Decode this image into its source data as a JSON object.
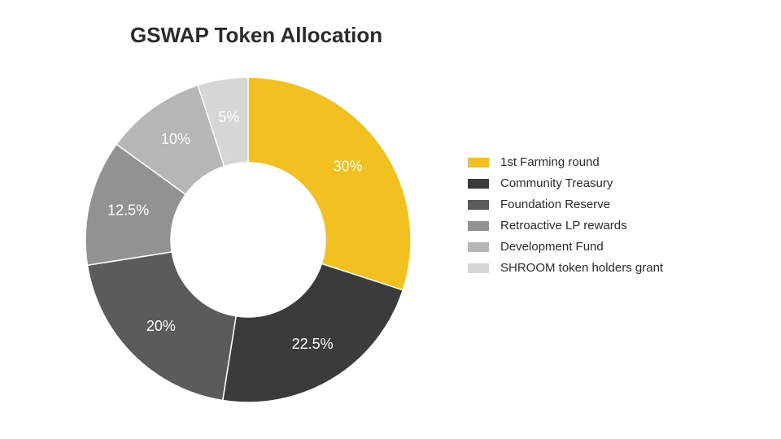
{
  "title": "GSWAP Token Allocation",
  "title_fontsize": 26,
  "background_color": "#ffffff",
  "chart": {
    "type": "donut",
    "outer_radius": 200,
    "inner_radius": 95,
    "start_angle_deg": 0,
    "label_fontsize": 18,
    "label_color": "#ffffff",
    "slices": [
      {
        "label": "1st Farming round",
        "value": 30,
        "color": "#f2c11f",
        "display": "30%"
      },
      {
        "label": "Community Treasury",
        "value": 22.5,
        "color": "#3b3b3b",
        "display": "22.5%"
      },
      {
        "label": "Foundation Reserve",
        "value": 20,
        "color": "#5c5b5b",
        "display": "20%"
      },
      {
        "label": "Retroactive LP rewards",
        "value": 12.5,
        "color": "#939292",
        "display": "12.5%"
      },
      {
        "label": "Development Fund",
        "value": 10,
        "color": "#b6b6b6",
        "display": "10%"
      },
      {
        "label": "SHROOM token holders grant",
        "value": 5,
        "color": "#d6d6d5",
        "display": "5%"
      }
    ]
  },
  "legend": {
    "swatch_width": 26,
    "swatch_height": 12,
    "fontsize": 15,
    "text_color": "#2b2b2b"
  }
}
